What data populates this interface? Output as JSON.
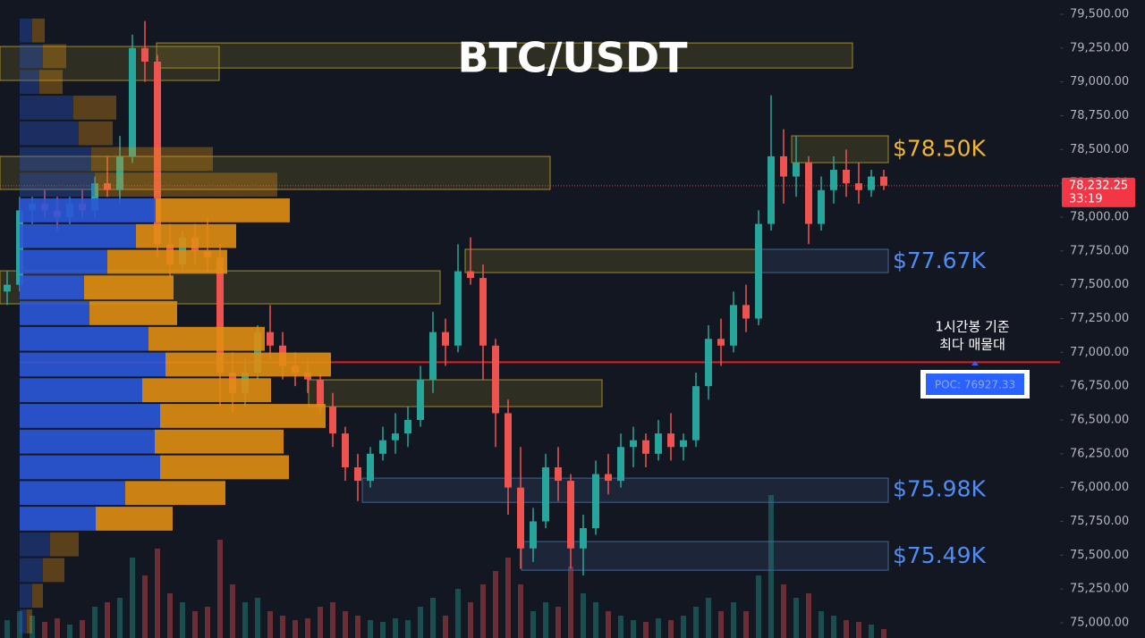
{
  "chart_data": {
    "type": "candlestick",
    "title": "BTC/USDT",
    "ylim": [
      74887.6,
      79605.7
    ],
    "yticks": [
      {
        "value": 75000,
        "label": "75,000.00"
      },
      {
        "value": 75250,
        "label": "75,250.00"
      },
      {
        "value": 75500,
        "label": "75,500.00"
      },
      {
        "value": 75750,
        "label": "75,750.00"
      },
      {
        "value": 76000,
        "label": "76,000.00"
      },
      {
        "value": 76250,
        "label": "76,250.00"
      },
      {
        "value": 76500,
        "label": "76,500.00"
      },
      {
        "value": 76750,
        "label": "76,750.00"
      },
      {
        "value": 77000,
        "label": "77,000.00"
      },
      {
        "value": 77250,
        "label": "77,250.00"
      },
      {
        "value": 77500,
        "label": "77,500.00"
      },
      {
        "value": 77750,
        "label": "77,750.00"
      },
      {
        "value": 78000,
        "label": "78,000.00"
      },
      {
        "value": 78250,
        "label": "78,250.00"
      },
      {
        "value": 78500,
        "label": "78,500.00"
      },
      {
        "value": 78750,
        "label": "78,750.00"
      },
      {
        "value": 79000,
        "label": "79,000.00"
      },
      {
        "value": 79250,
        "label": "79,250.00"
      },
      {
        "value": 79500,
        "label": "79,500.00"
      }
    ],
    "up_color": "#26a69a",
    "down_color": "#ef5350",
    "candles": [
      [
        77450,
        77600,
        77350,
        77500
      ],
      [
        77500,
        78150,
        77450,
        78050
      ],
      [
        78050,
        78150,
        77950,
        78100
      ],
      [
        78100,
        78200,
        78000,
        78050
      ],
      [
        78050,
        78150,
        77900,
        78000
      ],
      [
        78000,
        78150,
        77950,
        78100
      ],
      [
        78100,
        78200,
        78000,
        78050
      ],
      [
        78050,
        78300,
        78000,
        78250
      ],
      [
        78250,
        78450,
        78150,
        78200
      ],
      [
        78200,
        78600,
        78100,
        78450
      ],
      [
        78450,
        79350,
        78400,
        79250
      ],
      [
        79250,
        79450,
        79000,
        79150
      ],
      [
        79150,
        79200,
        77700,
        77800
      ],
      [
        77800,
        77950,
        77550,
        77650
      ],
      [
        77650,
        77900,
        77600,
        77850
      ],
      [
        77850,
        77950,
        77650,
        77750
      ],
      [
        77750,
        78000,
        77600,
        77700
      ],
      [
        77700,
        77800,
        76600,
        76850
      ],
      [
        76850,
        77000,
        76550,
        76700
      ],
      [
        76700,
        76950,
        76600,
        76850
      ],
      [
        76850,
        77200,
        76800,
        77150
      ],
      [
        77150,
        77350,
        76950,
        77050
      ],
      [
        77050,
        77150,
        76800,
        76900
      ],
      [
        76900,
        77000,
        76750,
        76850
      ],
      [
        76850,
        76950,
        76700,
        76800
      ],
      [
        76800,
        76850,
        76550,
        76600
      ],
      [
        76600,
        76700,
        76300,
        76400
      ],
      [
        76400,
        76450,
        76050,
        76150
      ],
      [
        76150,
        76250,
        75900,
        76050
      ],
      [
        76050,
        76300,
        76000,
        76250
      ],
      [
        76250,
        76450,
        76200,
        76350
      ],
      [
        76350,
        76550,
        76250,
        76400
      ],
      [
        76400,
        76600,
        76300,
        76500
      ],
      [
        76500,
        76900,
        76450,
        76800
      ],
      [
        76800,
        77300,
        76700,
        77150
      ],
      [
        77150,
        77250,
        76900,
        77050
      ],
      [
        77050,
        77800,
        77000,
        77600
      ],
      [
        77600,
        77850,
        77500,
        77550
      ],
      [
        77550,
        77650,
        76800,
        77050
      ],
      [
        77050,
        77100,
        76300,
        76550
      ],
      [
        76550,
        76650,
        75800,
        76000
      ],
      [
        76000,
        76300,
        75400,
        75550
      ],
      [
        75550,
        75850,
        75450,
        75750
      ],
      [
        75750,
        76250,
        75700,
        76150
      ],
      [
        76150,
        76300,
        75900,
        76050
      ],
      [
        76050,
        76100,
        75400,
        75550
      ],
      [
        75550,
        75800,
        75350,
        75700
      ],
      [
        75700,
        76200,
        75650,
        76100
      ],
      [
        76100,
        76250,
        75950,
        76050
      ],
      [
        76050,
        76400,
        76000,
        76300
      ],
      [
        76300,
        76450,
        76150,
        76350
      ],
      [
        76350,
        76400,
        76150,
        76250
      ],
      [
        76250,
        76500,
        76200,
        76400
      ],
      [
        76400,
        76550,
        76200,
        76300
      ],
      [
        76300,
        76400,
        76200,
        76350
      ],
      [
        76350,
        76850,
        76300,
        76750
      ],
      [
        76750,
        77200,
        76650,
        77100
      ],
      [
        77100,
        77250,
        76900,
        77050
      ],
      [
        77050,
        77450,
        77000,
        77350
      ],
      [
        77350,
        77500,
        77150,
        77250
      ],
      [
        77250,
        78050,
        77200,
        77950
      ],
      [
        77950,
        78900,
        77900,
        78450
      ],
      [
        78450,
        78650,
        78100,
        78300
      ],
      [
        78300,
        78600,
        78150,
        78400
      ],
      [
        78400,
        78450,
        77800,
        77950
      ],
      [
        77950,
        78300,
        77900,
        78200
      ],
      [
        78200,
        78450,
        78100,
        78350
      ],
      [
        78350,
        78500,
        78150,
        78250
      ],
      [
        78250,
        78400,
        78100,
        78200
      ],
      [
        78200,
        78350,
        78150,
        78300
      ],
      [
        78300,
        78350,
        78200,
        78232.25
      ]
    ],
    "volume": [
      20,
      30,
      25,
      18,
      22,
      15,
      20,
      35,
      40,
      45,
      90,
      70,
      100,
      50,
      40,
      30,
      35,
      110,
      60,
      40,
      45,
      30,
      25,
      20,
      22,
      35,
      40,
      30,
      25,
      20,
      18,
      22,
      20,
      35,
      45,
      25,
      55,
      40,
      60,
      75,
      90,
      60,
      30,
      40,
      35,
      80,
      50,
      40,
      30,
      25,
      20,
      18,
      22,
      20,
      25,
      35,
      45,
      30,
      40,
      30,
      70,
      160,
      60,
      45,
      50,
      30,
      25,
      20,
      18,
      15,
      10
    ],
    "profile": {
      "prices": [
        79380,
        79190,
        79000,
        78810,
        78620,
        78430,
        78240,
        78050,
        77860,
        77670,
        77480,
        77290,
        77100,
        76910,
        76720,
        76530,
        76340,
        76150,
        75960,
        75770,
        75580,
        75390,
        75200,
        75010
      ],
      "buy": [
        14,
        26,
        22,
        60,
        66,
        80,
        84,
        152,
        130,
        98,
        72,
        78,
        144,
        163,
        137,
        157,
        151,
        157,
        118,
        85,
        34,
        26,
        14,
        8
      ],
      "sell": [
        14,
        26,
        26,
        48,
        38,
        136,
        204,
        150,
        112,
        134,
        100,
        98,
        130,
        185,
        144,
        185,
        144,
        144,
        112,
        86,
        32,
        24,
        12,
        6
      ],
      "buy_color": "#2b58d9",
      "sell_color": "#e08e12",
      "value_area": [
        75770,
        78050
      ]
    },
    "zones": [
      {
        "top": 79288,
        "bottom": 79103,
        "color": "#a08a28"
      },
      {
        "top": 79262,
        "bottom": 79011,
        "color": "#a08a28"
      },
      {
        "top": 78449,
        "bottom": 78205,
        "color": "#a08a28"
      },
      {
        "top": 78601,
        "bottom": 78403,
        "color": "#a08a28"
      },
      {
        "top": 77762,
        "bottom": 77590,
        "color": "#a08a28"
      },
      {
        "top": 77762,
        "bottom": 77590,
        "color": "#41658f"
      },
      {
        "top": 77603,
        "bottom": 77359,
        "color": "#a08a28"
      },
      {
        "top": 76797,
        "bottom": 76599,
        "color": "#a08a28"
      },
      {
        "top": 76070,
        "bottom": 75891,
        "color": "#41658f"
      },
      {
        "top": 75601,
        "bottom": 75389,
        "color": "#41658f"
      }
    ],
    "price_labels": [
      {
        "value": 78500,
        "label": "$78.50K",
        "color": "#f4b62f"
      },
      {
        "value": 77670,
        "label": "$77.67K",
        "color": "#4f8df5"
      },
      {
        "value": 75980,
        "label": "$75.98K",
        "color": "#4f8df5"
      },
      {
        "value": 75490,
        "label": "$75.49K",
        "color": "#4f8df5"
      }
    ],
    "last_price": {
      "value": 78232.25,
      "label": "78,232.25",
      "countdown": "33:19",
      "color": "#f23645"
    },
    "poc": {
      "value": 76927.33,
      "label": "POC: 76927.33",
      "color": "#e01e1e"
    },
    "annotation": [
      "1시간봉 기준",
      "최다 매물대"
    ]
  }
}
